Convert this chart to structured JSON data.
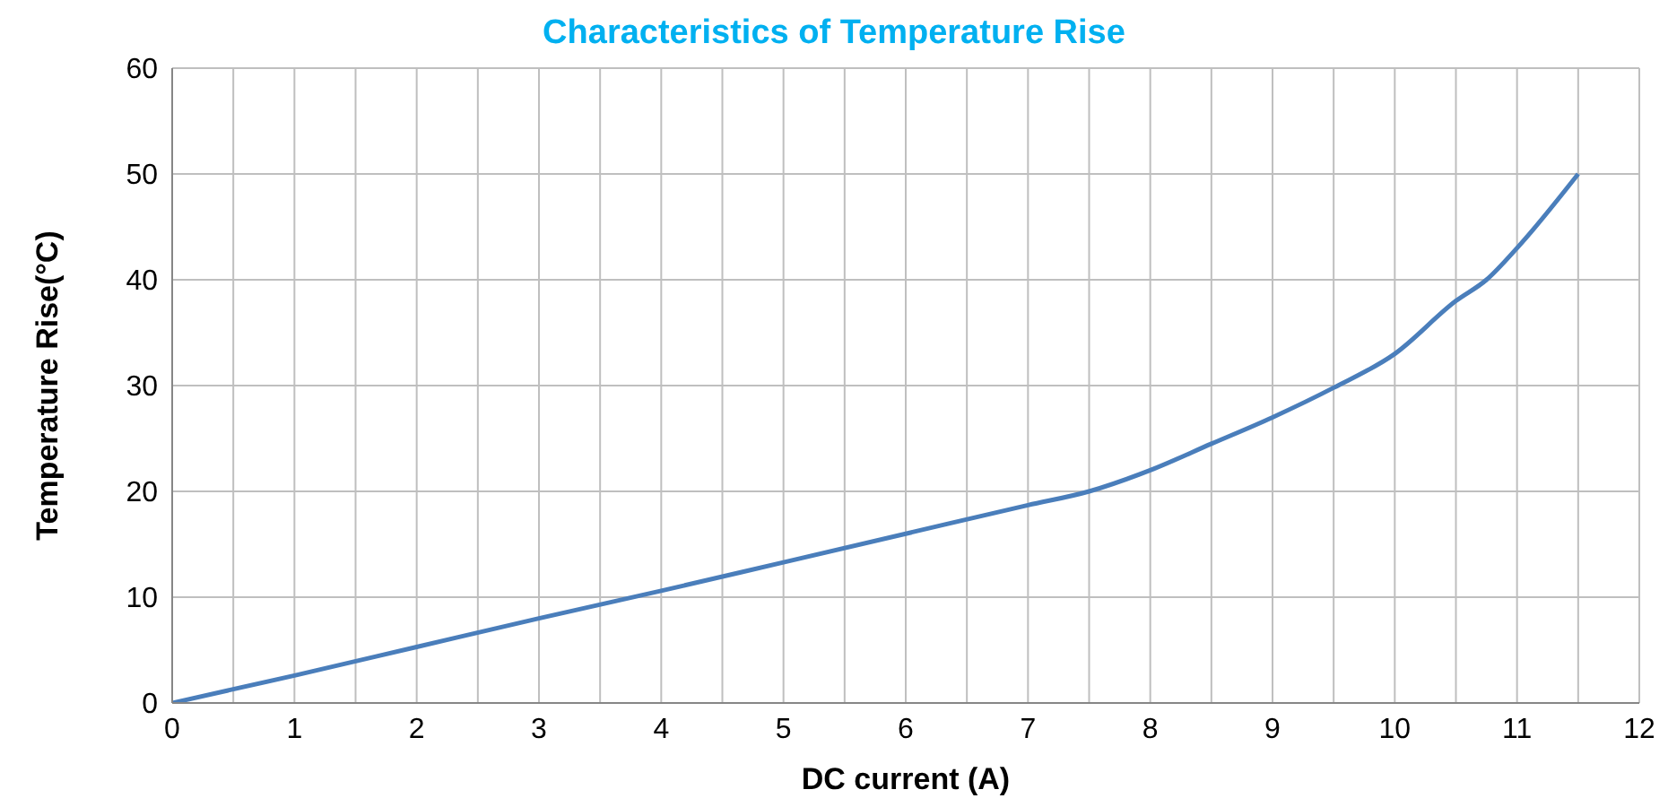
{
  "chart_data": {
    "type": "line",
    "title": "Characteristics of Temperature Rise",
    "xlabel": "DC current (A)",
    "ylabel": "Temperature Rise(°C)",
    "x": [
      0,
      1,
      2,
      3,
      4,
      5,
      6,
      7,
      7.5,
      8,
      8.5,
      9,
      9.5,
      10,
      10.5,
      10.75,
      11,
      11.5
    ],
    "series": [
      {
        "color": "#4a7ebb",
        "values": [
          0,
          2.6,
          5.3,
          8,
          10.6,
          13.3,
          16,
          18.7,
          20,
          22,
          24.5,
          27,
          29.8,
          33,
          38,
          40,
          43,
          50
        ]
      }
    ],
    "xlim": [
      0,
      12
    ],
    "xticks": [
      0,
      {
        "value": 0.5,
        "label": null
      },
      1,
      {
        "value": 1.5,
        "label": null
      },
      2,
      {
        "value": 2.5,
        "label": null
      },
      3,
      {
        "value": 3.5,
        "label": null
      },
      4,
      {
        "value": 4.5,
        "label": null
      },
      5,
      {
        "value": 5.5,
        "label": null
      },
      6,
      {
        "value": 6.5,
        "label": null
      },
      7,
      {
        "value": 7.5,
        "label": null
      },
      8,
      {
        "value": 8.5,
        "label": null
      },
      9,
      {
        "value": 9.5,
        "label": null
      },
      10,
      {
        "value": 10.5,
        "label": null
      },
      11,
      {
        "value": 11.5,
        "label": null
      },
      12
    ],
    "ylim": [
      0,
      60
    ],
    "yticks": [
      0,
      10,
      20,
      30,
      40,
      50,
      60
    ],
    "grid": true,
    "legend": false,
    "marker": "none",
    "line_style": "solid"
  }
}
